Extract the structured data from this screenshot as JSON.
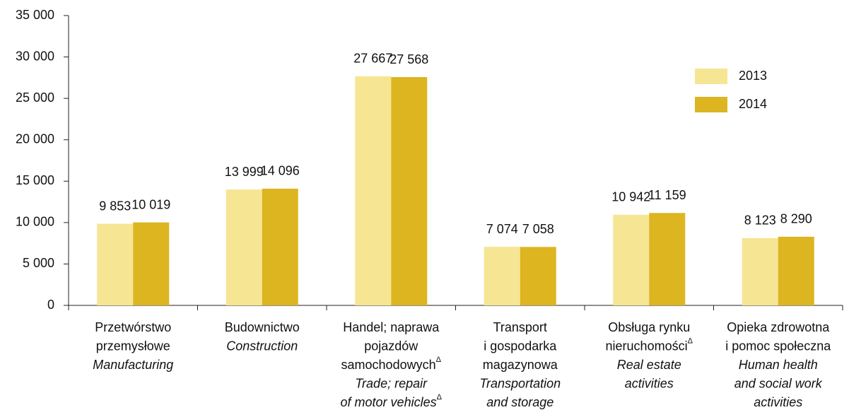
{
  "chart_data": {
    "type": "bar",
    "categories": [
      {
        "pl": [
          "Przetwórstwo",
          "przemysłowe"
        ],
        "en": [
          "Manufacturing"
        ]
      },
      {
        "pl": [
          "Budownictwo"
        ],
        "en": [
          "Construction"
        ]
      },
      {
        "pl": [
          "Handel; naprawa",
          "pojazdów",
          "samochodowych"
        ],
        "pl_mark": "Δ",
        "en": [
          "Trade; repair",
          "of motor vehicles"
        ],
        "en_mark": "Δ"
      },
      {
        "pl": [
          "Transport",
          "i gospodarka",
          "magazynowa"
        ],
        "en": [
          "Transportation",
          "and storage"
        ]
      },
      {
        "pl": [
          "Obsługa rynku",
          "nieruchomości"
        ],
        "pl_mark": "Δ",
        "en": [
          "Real estate",
          "activities"
        ]
      },
      {
        "pl": [
          "Opieka zdrowotna",
          "i pomoc społeczna"
        ],
        "en": [
          "Human health",
          "and social work",
          "activities"
        ]
      }
    ],
    "series": [
      {
        "name": "2013",
        "color": "#f6e593",
        "values": [
          9853,
          13999,
          27667,
          7074,
          10942,
          8123
        ],
        "value_labels": [
          "9 853",
          "13 999",
          "27 667",
          "7 074",
          "10 942",
          "8 123"
        ]
      },
      {
        "name": "2014",
        "color": "#dcb520",
        "values": [
          10019,
          14096,
          27568,
          7058,
          11159,
          8290
        ],
        "value_labels": [
          "10 019",
          "14 096",
          "27 568",
          "7 058",
          "11 159",
          "8 290"
        ]
      }
    ],
    "ylim": [
      0,
      35000
    ],
    "yticks": [
      0,
      {
        "value": 5000,
        "label": "5 000"
      },
      {
        "value": 10000,
        "label": "10 000"
      },
      {
        "value": 15000,
        "label": "15 000"
      },
      {
        "value": 20000,
        "label": "20 000"
      },
      {
        "value": 25000,
        "label": "25 000"
      },
      {
        "value": 30000,
        "label": "30 000"
      },
      {
        "value": 35000,
        "label": "35 000"
      }
    ],
    "legend": "upper right"
  }
}
